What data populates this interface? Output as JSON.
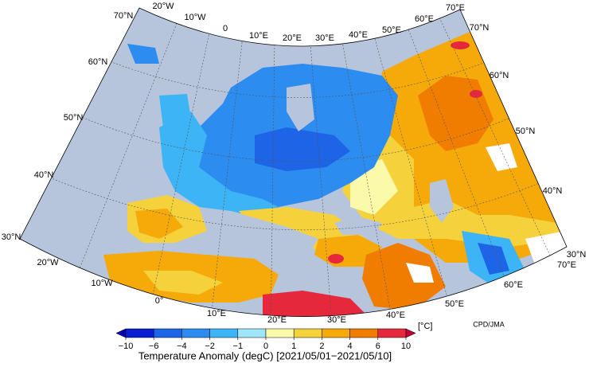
{
  "map": {
    "lon_labels_top": [
      "20°W",
      "10°W",
      "0",
      "10°E",
      "20°E",
      "30°E",
      "40°E",
      "50°E",
      "60°E",
      "70°E"
    ],
    "lon_labels_bottom": [
      "20°W",
      "10°W",
      "0°",
      "10°E",
      "20°E",
      "30°E",
      "40°E",
      "50°E",
      "60°E",
      "70°E"
    ],
    "lat_labels_left": [
      "70°N",
      "60°N",
      "50°N",
      "40°N",
      "30°N"
    ],
    "lat_labels_right": [
      "70°N",
      "60°N",
      "50°N",
      "40°N",
      "30°N"
    ],
    "colorbar": {
      "ticks": [
        {
          "value": -10,
          "label": "−10"
        },
        {
          "value": -6,
          "label": "−6"
        },
        {
          "value": -4,
          "label": "−4"
        },
        {
          "value": -2,
          "label": "−2"
        },
        {
          "value": -1,
          "label": "−1"
        },
        0,
        1,
        2,
        4,
        6,
        10
      ],
      "colors": [
        "#0a1ed2",
        "#1e64e6",
        "#2d8cf0",
        "#3cb4f5",
        "#a0e6fa",
        "#fafaaa",
        "#f5d23c",
        "#f5aa0a",
        "#f07d00",
        "#e6283c"
      ],
      "under_color": "#0000b4",
      "over_color": "#be0032",
      "unit": "[°C]"
    },
    "title": "Temperature Anomaly (degC) [2021/05/01−2021/05/10]",
    "credit": "CPD/JMA"
  }
}
